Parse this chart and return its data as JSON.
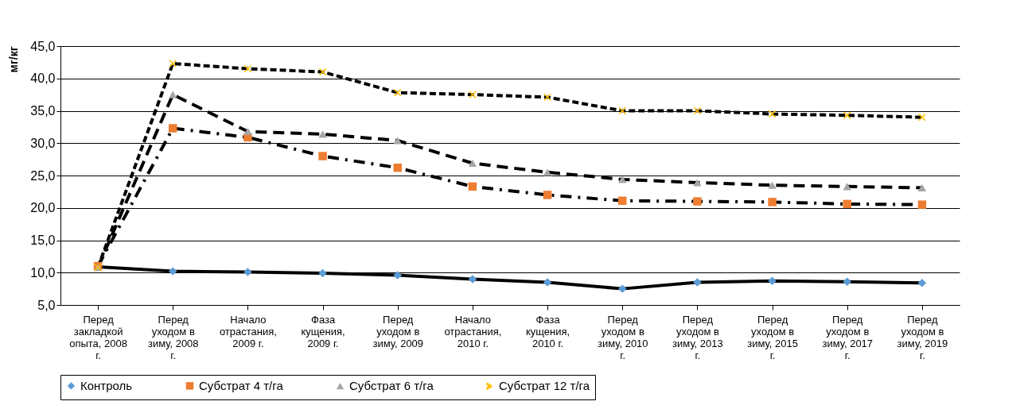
{
  "chart_data": {
    "type": "line",
    "ylabel": "мг/кг",
    "categories": [
      "Перед закладкой опыта, 2008 г.",
      "Перед уходом в зиму, 2008 г.",
      "Начало отрастания, 2009 г.",
      "Фаза кущения, 2009 г.",
      "Перед уходом в зиму, 2009",
      "Начало отрастания, 2010 г.",
      "Фаза кущения, 2010 г.",
      "Перед уходом в зиму, 2010 г.",
      "Перед уходом в зиму, 2013 г.",
      "Перед уходом в зиму, 2015 г.",
      "Перед уходом в зиму, 2017 г.",
      "Перед уходом в зиму, 2019 г."
    ],
    "series": [
      {
        "name": "Контроль",
        "color": "#5b9bd5",
        "marker": "diamond",
        "line_style": "solid",
        "values": [
          10.9,
          10.2,
          10.1,
          9.9,
          9.6,
          9.0,
          8.5,
          7.5,
          8.5,
          8.7,
          8.6,
          8.4
        ]
      },
      {
        "name": "Субстрат 4 т/га",
        "color": "#ed7d31",
        "marker": "square",
        "line_style": "dashed",
        "values": [
          11.0,
          32.3,
          30.9,
          28.0,
          26.2,
          23.3,
          22.0,
          21.1,
          21.0,
          20.9,
          20.6,
          20.5
        ]
      },
      {
        "name": "Субстрат 6 т/га",
        "color": "#a5a5a5",
        "marker": "triangle",
        "line_style": "dashed",
        "values": [
          10.8,
          37.5,
          31.8,
          31.4,
          30.4,
          26.9,
          25.5,
          24.4,
          23.9,
          23.5,
          23.3,
          23.1
        ]
      },
      {
        "name": "Субстрат 12 т/га",
        "color": "#ffc000",
        "marker": "cross",
        "line_style": "dashed",
        "values": [
          10.8,
          42.3,
          41.5,
          41.0,
          37.8,
          37.5,
          37.1,
          35.0,
          35.0,
          34.5,
          34.3,
          34.0
        ]
      }
    ],
    "ylim": [
      5,
      45
    ],
    "yticks": [
      {
        "value": 5,
        "label": "5,0"
      },
      {
        "value": 10,
        "label": "10,0"
      },
      {
        "value": 15,
        "label": "15,0"
      },
      {
        "value": 20,
        "label": "20,0"
      },
      {
        "value": 25,
        "label": "25,0"
      },
      {
        "value": 30,
        "label": "30,0"
      },
      {
        "value": 35,
        "label": "35,0"
      },
      {
        "value": 40,
        "label": "40,0"
      },
      {
        "value": 45,
        "label": "45,0"
      }
    ],
    "grid": "y",
    "legend": "bottom"
  }
}
